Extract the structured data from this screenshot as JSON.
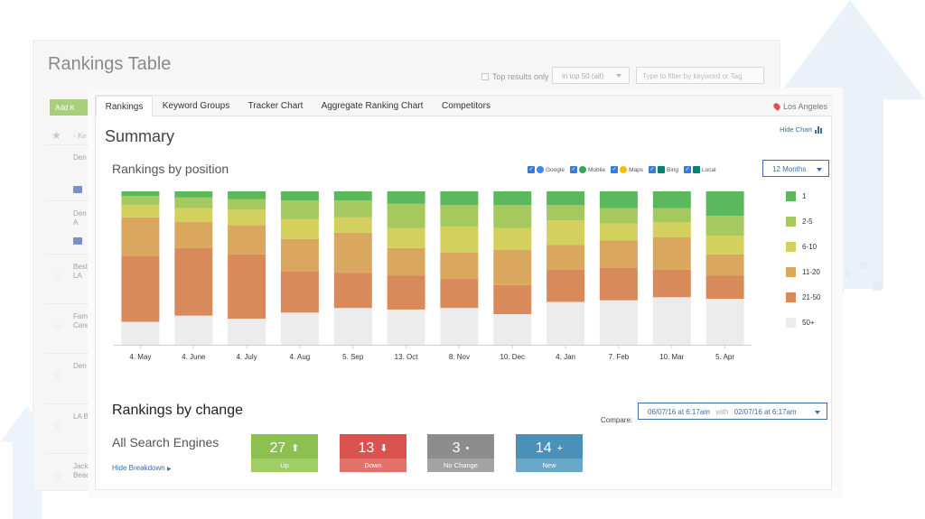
{
  "back_panel": {
    "title": "Rankings Table",
    "top_results_label": "Top results only",
    "filter_select": "in top 50 (all)",
    "filter_placeholder": "Type to filter by keyword or Tag",
    "add_button": "Add K",
    "keyword_header": "Ke",
    "rows": [
      {
        "text": "Den LA",
        "badge": false
      },
      {
        "text": "",
        "badge": true
      },
      {
        "text": "Den Los A",
        "badge": false
      },
      {
        "text": "",
        "badge": true
      },
      {
        "text": "Best in LA",
        "badge": false
      },
      {
        "text": "Fam Care",
        "badge": false
      },
      {
        "text": "Den LA",
        "badge": false
      },
      {
        "text": "LA B",
        "badge": false
      },
      {
        "text": "Jack Beac",
        "badge": false
      }
    ]
  },
  "tabs": [
    {
      "label": "Rankings",
      "active": true
    },
    {
      "label": "Keyword Groups",
      "active": false
    },
    {
      "label": "Tracker Chart",
      "active": false
    },
    {
      "label": "Aggregate Ranking Chart",
      "active": false
    },
    {
      "label": "Competitors",
      "active": false
    }
  ],
  "location": "Los Angeles",
  "summary_title": "Summary",
  "hide_chart_label": "Hide Chart",
  "rankings_by_position_title": "Rankings by position",
  "engines": [
    {
      "name": "Google",
      "icon": "google-icon",
      "checked": true,
      "color": "#4285f4"
    },
    {
      "name": "Mobile",
      "icon": "google-mobile-icon",
      "checked": true,
      "color": "#34a853"
    },
    {
      "name": "Maps",
      "icon": "maps-pin-icon",
      "checked": true,
      "color": "#fbbc05"
    },
    {
      "name": "Bing",
      "icon": "bing-icon",
      "checked": true,
      "color": "#008373"
    },
    {
      "name": "Local",
      "icon": "bing-local-icon",
      "checked": true,
      "color": "#008373"
    }
  ],
  "period_select": "12 Months",
  "chart_data": {
    "type": "bar",
    "stacked": true,
    "categories": [
      "4. May",
      "4. June",
      "4. July",
      "4. Aug",
      "5. Sep",
      "13. Oct",
      "8. Nov",
      "10. Dec",
      "4. Jan",
      "7. Feb",
      "10. Mar",
      "5. Apr"
    ],
    "ylim": [
      0,
      100
    ],
    "series": [
      {
        "name": "1",
        "color": "#5cb85c",
        "values": [
          3,
          4,
          5,
          6,
          6,
          8,
          9,
          9,
          9,
          11,
          11,
          16
        ]
      },
      {
        "name": "2-5",
        "color": "#a5c85f",
        "values": [
          6,
          7,
          7,
          12,
          11,
          16,
          14,
          15,
          10,
          10,
          9,
          13
        ]
      },
      {
        "name": "6-10",
        "color": "#d4d05e",
        "values": [
          8,
          9,
          10,
          13,
          10,
          13,
          17,
          14,
          16,
          11,
          10,
          12
        ]
      },
      {
        "name": "11-20",
        "color": "#d9a85e",
        "values": [
          25,
          17,
          19,
          21,
          26,
          18,
          17,
          23,
          16,
          18,
          21,
          14
        ]
      },
      {
        "name": "21-50",
        "color": "#d98a5a",
        "values": [
          43,
          44,
          42,
          27,
          23,
          22,
          19,
          19,
          21,
          21,
          18,
          15
        ]
      },
      {
        "name": "50+",
        "color": "#ececec",
        "values": [
          15,
          19,
          17,
          21,
          24,
          23,
          24,
          20,
          28,
          29,
          31,
          30
        ]
      }
    ]
  },
  "rankings_by_change_title": "Rankings by change",
  "compare": {
    "label": "Compare:",
    "from": "06/07/16 at 6:17am",
    "with_label": "with",
    "to": "02/07/16 at 6:17am"
  },
  "all_engines_title": "All Search Engines",
  "hide_breakdown_label": "Hide Breakdown",
  "change_cards": [
    {
      "value": "27",
      "symbol": "⬆",
      "label": "Up",
      "color": "#8cc152",
      "dark": "#9fcd66"
    },
    {
      "value": "13",
      "symbol": "⬇",
      "label": "Down",
      "color": "#d9534f",
      "dark": "#e2706b"
    },
    {
      "value": "3",
      "symbol": "•",
      "label": "No Change",
      "color": "#8d8d8d",
      "dark": "#a3a3a3"
    },
    {
      "value": "14",
      "symbol": "+",
      "label": "New",
      "color": "#4a90b8",
      "dark": "#6aa6c8"
    }
  ]
}
